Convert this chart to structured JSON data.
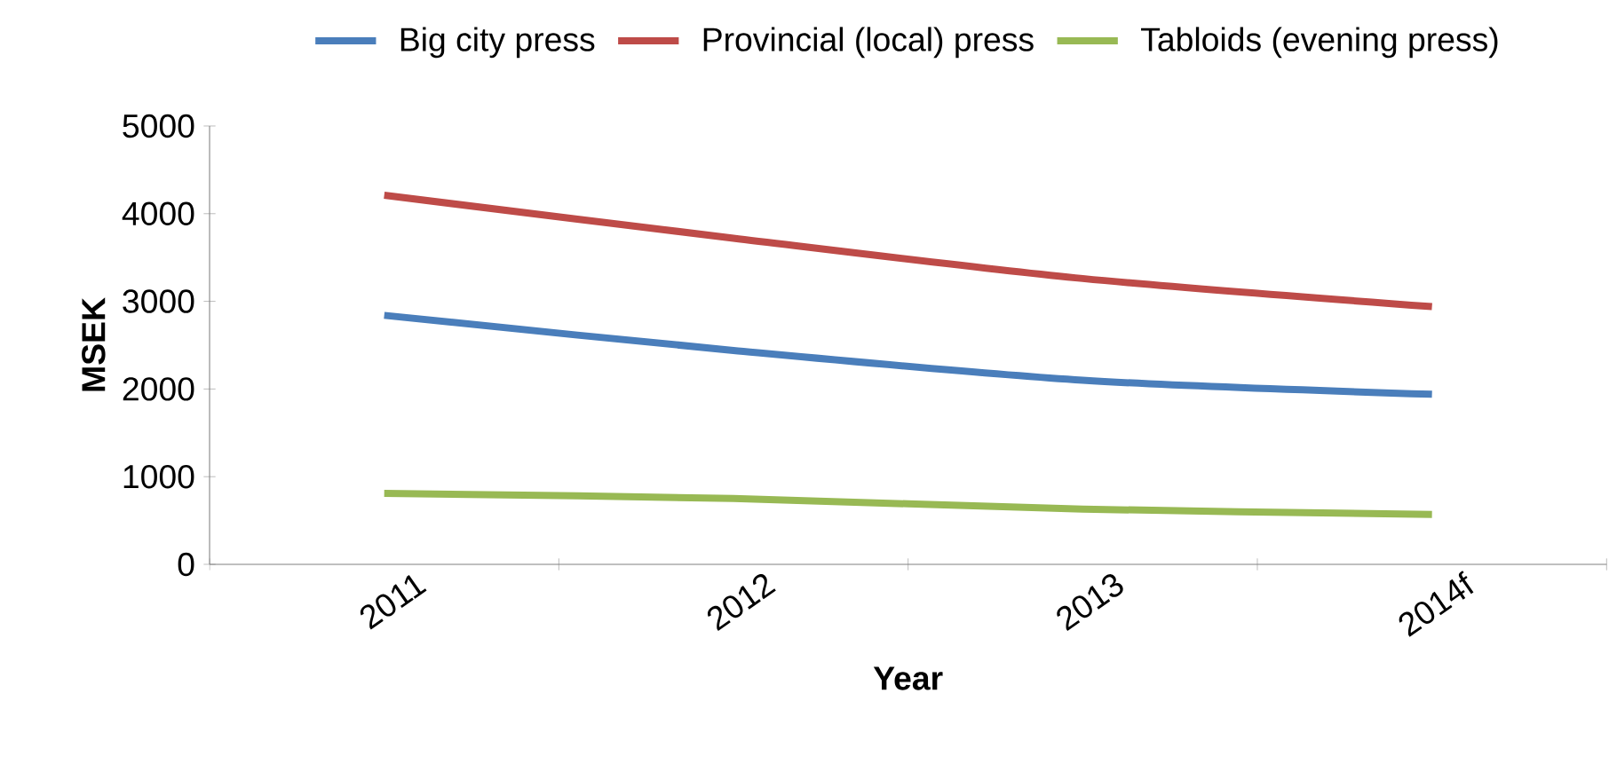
{
  "chart_data": {
    "type": "line",
    "xlabel": "Year",
    "ylabel": "MSEK",
    "categories": [
      "2011",
      "2012",
      "2013",
      "2014f"
    ],
    "series": [
      {
        "name": "Big city press",
        "color": "#4a7ebb",
        "values": [
          2840,
          2440,
          2100,
          1940
        ]
      },
      {
        "name": "Provincial (local) press",
        "color": "#be4b48",
        "values": [
          4210,
          3720,
          3260,
          2940
        ]
      },
      {
        "name": "Tabloids (evening press)",
        "color": "#98b954",
        "values": [
          810,
          750,
          630,
          570
        ]
      }
    ],
    "ylim": [
      0,
      5000
    ],
    "yticks": [
      0,
      1000,
      2000,
      3000,
      4000,
      5000
    ],
    "legend": "top"
  }
}
